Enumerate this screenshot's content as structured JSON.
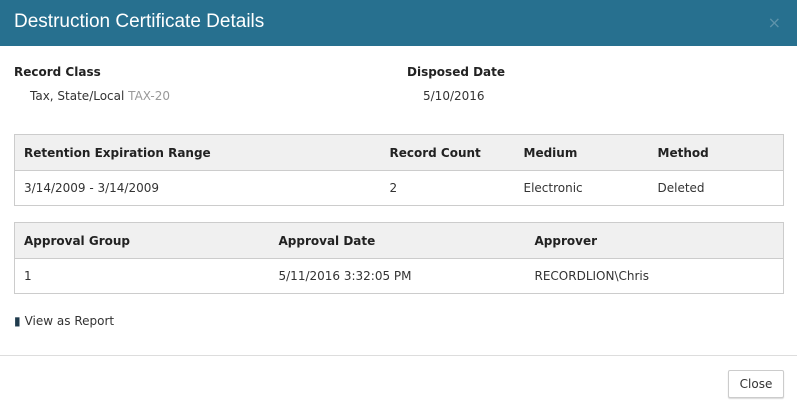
{
  "modal": {
    "title": "Destruction Certificate Details",
    "close_icon": "×"
  },
  "record_class": {
    "label": "Record Class",
    "name": "Tax, State/Local",
    "code": "TAX-20"
  },
  "disposed_date": {
    "label": "Disposed Date",
    "value": "5/10/2016"
  },
  "retention_table": {
    "headers": [
      "Retention Expiration Range",
      "Record Count",
      "Medium",
      "Method"
    ],
    "rows": [
      [
        "3/14/2009 - 3/14/2009",
        "2",
        "Electronic",
        "Deleted"
      ]
    ]
  },
  "approval_table": {
    "headers": [
      "Approval Group",
      "Approval Date",
      "Approver"
    ],
    "rows": [
      [
        "1",
        "5/11/2016 3:32:05 PM",
        "RECORDLION\\Chris"
      ]
    ]
  },
  "view_report": {
    "label": "View as Report",
    "icon": "book-icon"
  },
  "footer": {
    "close_label": "Close"
  },
  "colors": {
    "header": "#27708f"
  }
}
